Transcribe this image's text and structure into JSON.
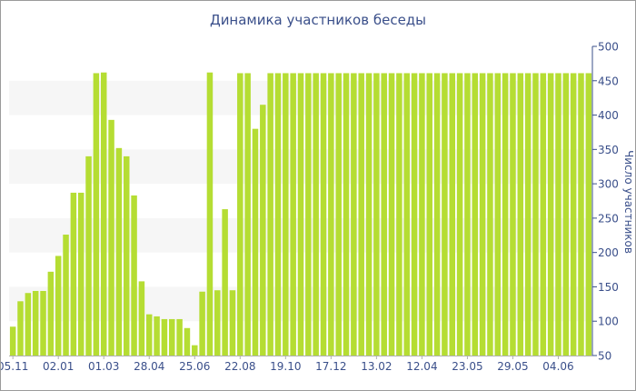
{
  "chart_data": {
    "type": "bar",
    "title": "Динамика участников беседы",
    "ylabel": "Число участников",
    "xlabel": "",
    "ylim": [
      50,
      500
    ],
    "y_axis_position": "right",
    "y_ticks": [
      50,
      100,
      150,
      200,
      250,
      300,
      350,
      400,
      450,
      500
    ],
    "x_tick_labels": [
      {
        "label": "05.11",
        "index": 0
      },
      {
        "label": "02.01",
        "index": 6
      },
      {
        "label": "01.03",
        "index": 12
      },
      {
        "label": "28.04",
        "index": 18
      },
      {
        "label": "25.06",
        "index": 24
      },
      {
        "label": "22.08",
        "index": 30
      },
      {
        "label": "19.10",
        "index": 36
      },
      {
        "label": "17.12",
        "index": 42
      },
      {
        "label": "13.02",
        "index": 48
      },
      {
        "label": "12.04",
        "index": 54
      },
      {
        "label": "23.05",
        "index": 60
      },
      {
        "label": "29.05",
        "index": 66
      },
      {
        "label": "04.06",
        "index": 72
      }
    ],
    "bar_color": "#b5dd33",
    "band_color": "#f6f6f6",
    "axis_color": "#3a4f8a",
    "values": [
      92,
      129,
      141,
      144,
      144,
      172,
      195,
      226,
      287,
      287,
      340,
      461,
      462,
      393,
      352,
      340,
      283,
      158,
      110,
      107,
      103,
      103,
      103,
      90,
      65,
      143,
      462,
      145,
      263,
      145,
      461,
      461,
      380,
      415,
      461,
      461,
      461,
      461,
      461,
      461,
      461,
      461,
      461,
      461,
      461,
      461,
      461,
      461,
      461,
      461,
      461,
      461,
      461,
      461,
      461,
      461,
      461,
      461,
      461,
      461,
      461,
      461,
      461,
      461,
      461,
      461,
      461,
      461,
      461,
      461,
      461,
      461,
      461,
      461,
      461,
      461,
      461
    ]
  }
}
